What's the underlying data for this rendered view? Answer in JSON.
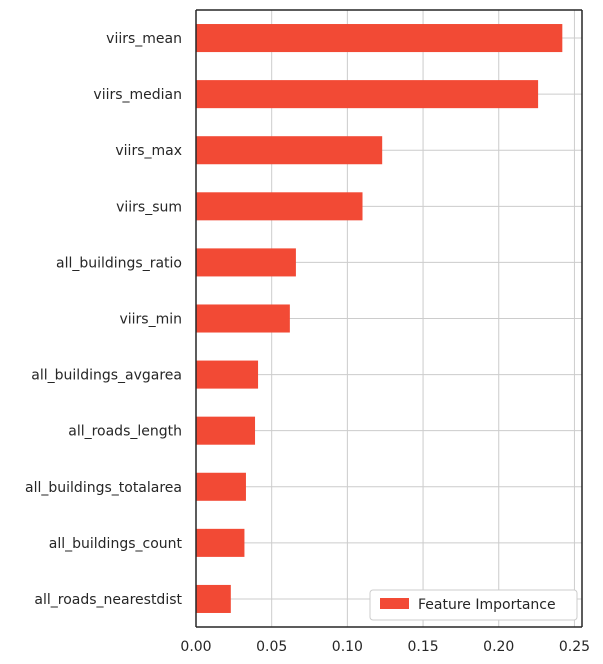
{
  "chart_data": {
    "type": "bar",
    "orientation": "horizontal",
    "categories": [
      "viirs_mean",
      "viirs_median",
      "viirs_max",
      "viirs_sum",
      "all_buildings_ratio",
      "viirs_min",
      "all_buildings_avgarea",
      "all_roads_length",
      "all_buildings_totalarea",
      "all_buildings_count",
      "all_roads_nearestdist"
    ],
    "series": [
      {
        "name": "Feature Importance",
        "color": "#f24a35",
        "values": [
          0.242,
          0.226,
          0.123,
          0.11,
          0.066,
          0.062,
          0.041,
          0.039,
          0.033,
          0.032,
          0.023
        ]
      }
    ],
    "xlim": [
      0,
      0.255
    ],
    "xticks": [
      0.0,
      0.05,
      0.1,
      0.15,
      0.2,
      0.25
    ],
    "xtick_labels": [
      "0.00",
      "0.05",
      "0.10",
      "0.15",
      "0.20",
      "0.25"
    ],
    "xlabel": "",
    "ylabel": "",
    "title": "",
    "grid": true,
    "legend": {
      "position": "bottom-right",
      "label": "Feature Importance"
    }
  }
}
